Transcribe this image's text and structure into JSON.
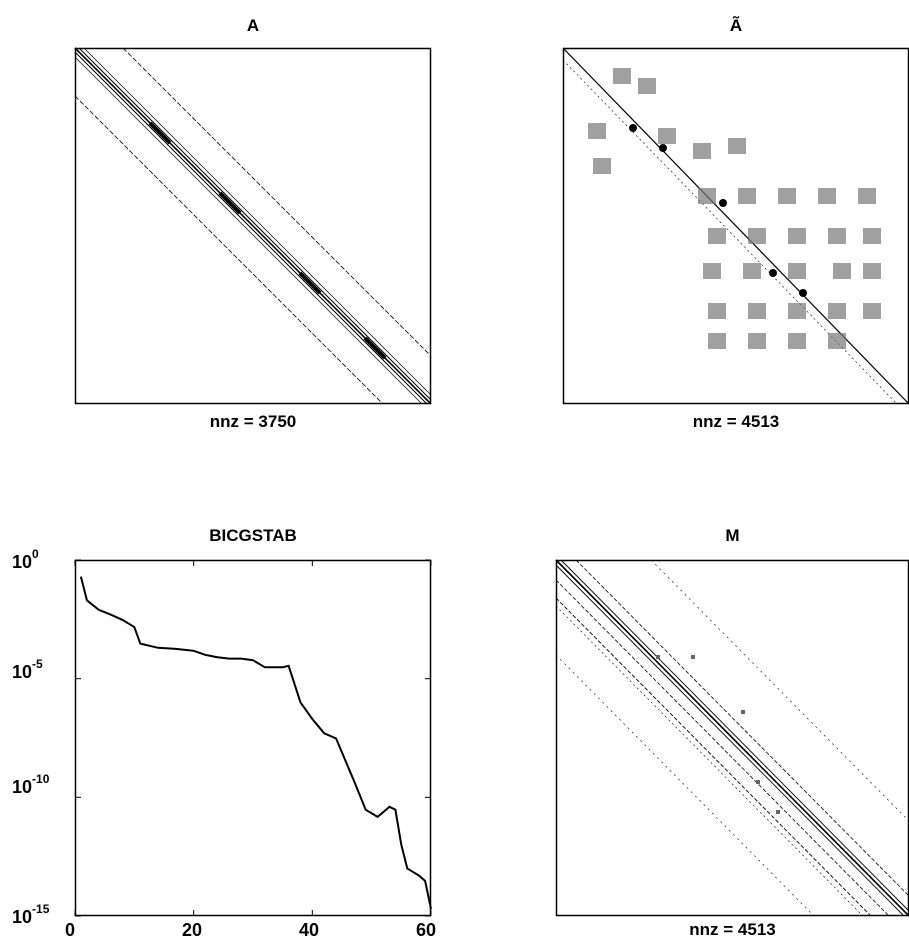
{
  "panels": {
    "a": {
      "title": "A",
      "xlabel": "nnz = 3750"
    },
    "b": {
      "title": "Ã",
      "xlabel": "nnz = 4513"
    },
    "c": {
      "title": "BICGSTAB"
    },
    "d": {
      "title": "M",
      "xlabel": "nnz = 4513"
    }
  },
  "chart_data": [
    {
      "type": "scatter",
      "subtype": "sparsity-pattern",
      "title": "A",
      "xlabel": "nnz = 3750",
      "nnz": 3750,
      "pattern": "narrow band along main diagonal with two outer off-diagonals",
      "diagonal_offsets": [
        0,
        8,
        -8
      ]
    },
    {
      "type": "scatter",
      "subtype": "sparsity-pattern",
      "title": "Ã",
      "xlabel": "nnz = 4513",
      "nnz": 4513,
      "pattern": "main diagonal with scattered dense blocks in lower-right region"
    },
    {
      "type": "line",
      "title": "BICGSTAB",
      "xlabel": "",
      "ylabel": "",
      "xlim": [
        0,
        60
      ],
      "ylim": [
        1e-15,
        1
      ],
      "yscale": "log",
      "xticks": [
        "0",
        "20",
        "40",
        "60"
      ],
      "yticks": [
        {
          "base": "10",
          "exp": "0"
        },
        {
          "base": "10",
          "exp": "-5"
        },
        {
          "base": "10",
          "exp": "-10"
        },
        {
          "base": "10",
          "exp": "-15"
        }
      ],
      "series": [
        {
          "x": [
            1,
            2,
            4,
            6,
            8,
            10,
            11,
            14,
            17,
            20,
            22,
            24,
            26,
            28,
            30,
            32,
            34,
            35,
            36,
            38,
            40,
            42,
            44,
            46,
            47,
            49,
            51,
            53,
            54,
            55,
            56,
            58,
            59,
            60
          ],
          "y": [
            0.2,
            0.02,
            0.008,
            0.005,
            0.003,
            0.0015,
            0.0003,
            0.0002,
            0.00018,
            0.00015,
            0.0001,
            8e-05,
            7e-05,
            7e-05,
            6e-05,
            3e-05,
            3e-05,
            3e-05,
            3.5e-05,
            1e-06,
            2e-07,
            5e-08,
            3e-08,
            2e-09,
            5e-10,
            3e-11,
            1.5e-11,
            4e-11,
            3e-11,
            1e-12,
            1e-13,
            5e-14,
            3e-14,
            2e-15
          ]
        }
      ]
    },
    {
      "type": "scatter",
      "subtype": "sparsity-pattern",
      "title": "M",
      "xlabel": "nnz = 4513",
      "nnz": 4513,
      "pattern": "multiple parallel bands around main diagonal"
    }
  ]
}
